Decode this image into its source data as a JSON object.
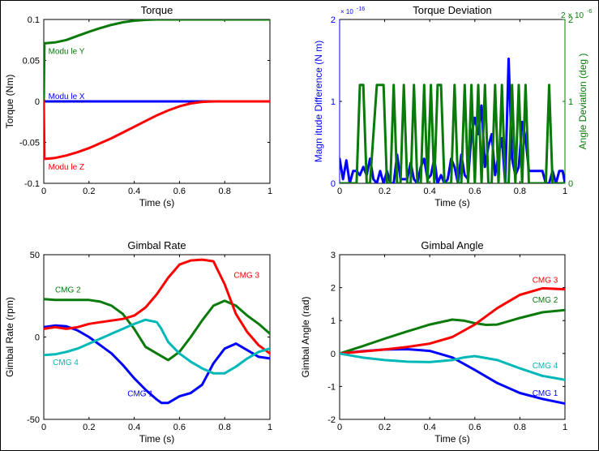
{
  "chart_data": [
    {
      "type": "line",
      "title": "Torque",
      "xlabel": "Time (s)",
      "ylabel": "Torque  (Nm)",
      "xlim": [
        0,
        1
      ],
      "ylim": [
        -0.1,
        0.1
      ],
      "xticks": [
        0,
        0.2,
        0.4,
        0.6,
        0.8,
        1
      ],
      "xtick_labels": [
        "0",
        "0.2",
        "0.4",
        "0.6",
        "0.8",
        "1"
      ],
      "yticks": [
        -0.1,
        -0.05,
        0,
        0.05,
        0.1
      ],
      "ytick_labels": [
        "-0.1",
        "-0.05",
        "0",
        "0.05",
        "0.1"
      ],
      "series": [
        {
          "name": "Modu le Y",
          "color": "#0a7a0a",
          "x": [
            0,
            0.003,
            0.01,
            0.05,
            0.1,
            0.15,
            0.2,
            0.25,
            0.3,
            0.35,
            0.4,
            0.45,
            0.5,
            0.55,
            0.6,
            0.65,
            1
          ],
          "y": [
            0,
            0.071,
            0.071,
            0.072,
            0.075,
            0.08,
            0.085,
            0.0895,
            0.0935,
            0.0965,
            0.0985,
            0.0995,
            0.1,
            0.1,
            0.1,
            0.1,
            0.1
          ]
        },
        {
          "name": "Modu le X",
          "color": "#0000ff",
          "x": [
            0,
            1
          ],
          "y": [
            0,
            0
          ]
        },
        {
          "name": "Modu le Z",
          "color": "#ff0000",
          "x": [
            0,
            0.003,
            0.01,
            0.05,
            0.1,
            0.15,
            0.2,
            0.25,
            0.3,
            0.35,
            0.4,
            0.45,
            0.5,
            0.55,
            0.6,
            0.65,
            0.7,
            0.75,
            1
          ],
          "y": [
            0,
            -0.07,
            -0.07,
            -0.069,
            -0.066,
            -0.062,
            -0.057,
            -0.051,
            -0.045,
            -0.038,
            -0.031,
            -0.024,
            -0.017,
            -0.011,
            -0.006,
            -0.0025,
            -0.0006,
            0,
            0
          ]
        }
      ],
      "annotations": [
        {
          "text": "Modu le Y",
          "x": 0.02,
          "y": 0.058,
          "color": "#0a7a0a"
        },
        {
          "text": "Modu le X",
          "x": 0.02,
          "y": 0.003,
          "color": "#0000ff"
        },
        {
          "text": "Modu le Z",
          "x": 0.02,
          "y": -0.083,
          "color": "#ff0000"
        }
      ]
    },
    {
      "type": "line",
      "title": "Torque Deviation",
      "xlabel": "Time (s)",
      "ylabel": "Magn itude  Difference  (N m)",
      "y2label": "Angle  Deviation  (deg )",
      "xlim": [
        0,
        1
      ],
      "ylim": [
        0,
        2
      ],
      "y2lim": [
        0,
        2
      ],
      "xticks": [
        0,
        0.2,
        0.4,
        0.6,
        0.8,
        1
      ],
      "xtick_labels": [
        "0",
        "0.2",
        "0.4",
        "0.6",
        "0.8",
        "1"
      ],
      "yticks": [
        0,
        1,
        2
      ],
      "ytick_labels": [
        "0",
        "1",
        "2"
      ],
      "y2ticks": [
        0,
        1,
        2
      ],
      "y2tick_labels": [
        "0",
        "1",
        "2"
      ],
      "y_exponent": "× 10",
      "y_exponent_power": "-16",
      "y2_exponent": "2 × 10",
      "y2_exponent_power": "-6",
      "series": [
        {
          "name": "",
          "axis": "left",
          "color": "#0000ff",
          "x": [
            0,
            0.015,
            0.03,
            0.045,
            0.06,
            0.075,
            0.09,
            0.105,
            0.12,
            0.135,
            0.15,
            0.165,
            0.18,
            0.195,
            0.21,
            0.225,
            0.24,
            0.255,
            0.27,
            0.285,
            0.3,
            0.315,
            0.33,
            0.345,
            0.36,
            0.375,
            0.39,
            0.405,
            0.42,
            0.435,
            0.45,
            0.465,
            0.48,
            0.495,
            0.51,
            0.525,
            0.54,
            0.555,
            0.57,
            0.585,
            0.6,
            0.615,
            0.63,
            0.645,
            0.66,
            0.675,
            0.69,
            0.705,
            0.72,
            0.735,
            0.75,
            0.765,
            0.78,
            0.795,
            0.81,
            0.825,
            0.84,
            0.855,
            0.87,
            0.885,
            0.9,
            0.915,
            0.93,
            0.945,
            0.96,
            0.975,
            0.99,
            1
          ],
          "y": [
            0.3,
            0.05,
            0.28,
            0,
            0.15,
            0.15,
            0.1,
            0.2,
            0.1,
            0.3,
            0.05,
            0,
            0.15,
            0,
            0.15,
            0,
            0,
            0.35,
            0.05,
            0.05,
            0.05,
            0.25,
            0.05,
            0,
            0.2,
            0.3,
            0.05,
            0.1,
            0.3,
            0,
            0.1,
            0,
            0.05,
            0.3,
            0.2,
            0,
            0.35,
            0.1,
            0.05,
            0.6,
            0.8,
            0.6,
            0.95,
            0.2,
            0.45,
            0.6,
            0.1,
            0.35,
            0.55,
            0,
            1.52,
            0.3,
            0.1,
            0.2,
            0.75,
            0.55,
            0.15,
            0.15,
            0.15,
            0.15,
            0.15,
            0,
            0,
            0.15,
            0,
            0.15,
            0.15,
            0
          ]
        },
        {
          "name": "",
          "axis": "right",
          "color": "#0a7a0a",
          "x": [
            0,
            0.075,
            0.09,
            0.105,
            0.12,
            0.135,
            0.165,
            0.195,
            0.21,
            0.225,
            0.24,
            0.255,
            0.27,
            0.285,
            0.3,
            0.315,
            0.33,
            0.345,
            0.36,
            0.375,
            0.39,
            0.405,
            0.42,
            0.435,
            0.45,
            0.465,
            0.48,
            0.495,
            0.51,
            0.525,
            0.54,
            0.555,
            0.57,
            0.585,
            0.6,
            0.615,
            0.63,
            0.645,
            0.66,
            0.675,
            0.69,
            0.705,
            0.72,
            0.735,
            0.75,
            0.765,
            0.78,
            0.795,
            0.81,
            0.825,
            0.84,
            0.855,
            0.9,
            0.915,
            0.93,
            0.945,
            0.96,
            1
          ],
          "y": [
            0,
            0,
            1.2,
            1.2,
            0,
            0,
            1.2,
            1.2,
            0,
            0,
            1.2,
            0,
            0,
            1.2,
            0,
            0,
            1.2,
            0,
            0,
            1.2,
            0,
            1.2,
            0,
            1.2,
            1.2,
            0,
            0,
            0,
            1.2,
            0,
            0,
            1.2,
            0,
            1.2,
            0,
            1.2,
            0,
            1.2,
            0,
            0,
            1.2,
            0,
            1.2,
            0,
            0,
            1.2,
            0,
            1.2,
            0,
            1.2,
            0,
            0,
            0,
            0,
            1.2,
            0,
            0,
            0
          ]
        }
      ]
    },
    {
      "type": "line",
      "title": "Gimbal Rate",
      "xlabel": "Time (s)",
      "ylabel": "Gimbal Rate  (rpm)",
      "xlim": [
        0,
        1
      ],
      "ylim": [
        -50,
        50
      ],
      "xticks": [
        0,
        0.2,
        0.4,
        0.6,
        0.8,
        1
      ],
      "xtick_labels": [
        "0",
        "0.2",
        "0.4",
        "0.6",
        "0.8",
        "1"
      ],
      "yticks": [
        -50,
        0,
        50
      ],
      "ytick_labels": [
        "-50",
        "0",
        "50"
      ],
      "series": [
        {
          "name": "CMG 1",
          "color": "#0000ff",
          "x": [
            0,
            0.05,
            0.1,
            0.15,
            0.2,
            0.25,
            0.3,
            0.35,
            0.4,
            0.45,
            0.5,
            0.52,
            0.55,
            0.6,
            0.65,
            0.7,
            0.75,
            0.8,
            0.85,
            0.9,
            0.95,
            1
          ],
          "y": [
            6,
            7,
            6.5,
            4,
            0,
            -5,
            -10,
            -17,
            -25,
            -32,
            -38,
            -40,
            -40,
            -36,
            -34,
            -29,
            -16,
            -7,
            -4,
            -8,
            -12,
            -13
          ]
        },
        {
          "name": "CMG 2",
          "color": "#0a7a0a",
          "x": [
            0,
            0.05,
            0.1,
            0.15,
            0.2,
            0.25,
            0.3,
            0.35,
            0.4,
            0.45,
            0.5,
            0.55,
            0.6,
            0.65,
            0.7,
            0.75,
            0.8,
            0.85,
            0.9,
            0.95,
            1
          ],
          "y": [
            23,
            22.5,
            22.5,
            22.5,
            22.5,
            21.5,
            19,
            14,
            5,
            -6,
            -10,
            -14,
            -9,
            0,
            10,
            19,
            22,
            19,
            13,
            8,
            2
          ]
        },
        {
          "name": "CMG 3",
          "color": "#ff0000",
          "x": [
            0,
            0.05,
            0.1,
            0.15,
            0.2,
            0.25,
            0.3,
            0.35,
            0.4,
            0.45,
            0.5,
            0.55,
            0.6,
            0.65,
            0.7,
            0.75,
            0.8,
            0.85,
            0.9,
            0.95,
            1
          ],
          "y": [
            5,
            6,
            5,
            6,
            8,
            9,
            10,
            11,
            13,
            18,
            26,
            36,
            44,
            46.5,
            47,
            46,
            32,
            14,
            3,
            -5,
            -10
          ]
        },
        {
          "name": "CMG 4",
          "color": "#00b8b8",
          "x": [
            0,
            0.05,
            0.1,
            0.15,
            0.2,
            0.25,
            0.3,
            0.35,
            0.4,
            0.45,
            0.5,
            0.52,
            0.55,
            0.6,
            0.65,
            0.7,
            0.75,
            0.8,
            0.85,
            0.9,
            0.95,
            1
          ],
          "y": [
            -11,
            -10.5,
            -9,
            -7,
            -4,
            -1,
            2,
            5,
            8,
            10.5,
            9,
            5,
            -3,
            -10,
            -15,
            -19,
            -22,
            -22,
            -18,
            -13,
            -9,
            -7
          ]
        }
      ],
      "annotations": [
        {
          "text": "CMG 1",
          "x": 0.37,
          "y": -36,
          "color": "#0000ff"
        },
        {
          "text": "CMG 2",
          "x": 0.05,
          "y": 27,
          "color": "#0a7a0a"
        },
        {
          "text": "CMG 3",
          "x": 0.84,
          "y": 36,
          "color": "#ff0000"
        },
        {
          "text": "CMG 4",
          "x": 0.04,
          "y": -17,
          "color": "#00b8b8"
        }
      ]
    },
    {
      "type": "line",
      "title": "Gimbal Angle",
      "xlabel": "Time (s)",
      "ylabel": "Gimbal Angle  (rad)",
      "xlim": [
        0,
        1
      ],
      "ylim": [
        -2,
        3
      ],
      "xticks": [
        0,
        0.2,
        0.4,
        0.6,
        0.8,
        1
      ],
      "xtick_labels": [
        "0",
        "0.2",
        "0.4",
        "0.6",
        "0.8",
        "1"
      ],
      "yticks": [
        -2,
        -1,
        0,
        1,
        2,
        3
      ],
      "ytick_labels": [
        "-2",
        "-1",
        "0",
        "1",
        "2",
        "3"
      ],
      "series": [
        {
          "name": "CMG 1",
          "color": "#0000ff",
          "x": [
            0,
            0.1,
            0.2,
            0.3,
            0.4,
            0.5,
            0.6,
            0.7,
            0.8,
            0.9,
            1
          ],
          "y": [
            0,
            0.07,
            0.12,
            0.13,
            0.08,
            -0.12,
            -0.5,
            -0.9,
            -1.2,
            -1.38,
            -1.52
          ]
        },
        {
          "name": "CMG 2",
          "color": "#0a7a0a",
          "x": [
            0,
            0.1,
            0.2,
            0.3,
            0.4,
            0.5,
            0.55,
            0.6,
            0.65,
            0.7,
            0.8,
            0.9,
            1
          ],
          "y": [
            0,
            0.22,
            0.45,
            0.67,
            0.88,
            1.03,
            1.0,
            0.92,
            0.87,
            0.88,
            1.08,
            1.25,
            1.32
          ]
        },
        {
          "name": "CMG 3",
          "color": "#ff0000",
          "x": [
            0,
            0.1,
            0.2,
            0.3,
            0.4,
            0.5,
            0.6,
            0.7,
            0.8,
            0.9,
            1
          ],
          "y": [
            0,
            0.06,
            0.12,
            0.2,
            0.3,
            0.5,
            0.88,
            1.38,
            1.78,
            1.98,
            1.95
          ]
        },
        {
          "name": "CMG 4",
          "color": "#00b8b8",
          "x": [
            0,
            0.1,
            0.2,
            0.3,
            0.4,
            0.5,
            0.55,
            0.6,
            0.7,
            0.8,
            0.9,
            1
          ],
          "y": [
            0,
            -0.12,
            -0.2,
            -0.25,
            -0.26,
            -0.2,
            -0.12,
            -0.08,
            -0.2,
            -0.45,
            -0.68,
            -0.8
          ]
        }
      ],
      "annotations": [
        {
          "text": "CMG 1",
          "x": 0.855,
          "y": -1.28,
          "color": "#0000ff"
        },
        {
          "text": "CMG 2",
          "x": 0.855,
          "y": 1.55,
          "color": "#0a7a0a"
        },
        {
          "text": "CMG 3",
          "x": 0.855,
          "y": 2.15,
          "color": "#ff0000"
        },
        {
          "text": "CMG 4",
          "x": 0.855,
          "y": -0.45,
          "color": "#00b8b8"
        }
      ]
    }
  ]
}
